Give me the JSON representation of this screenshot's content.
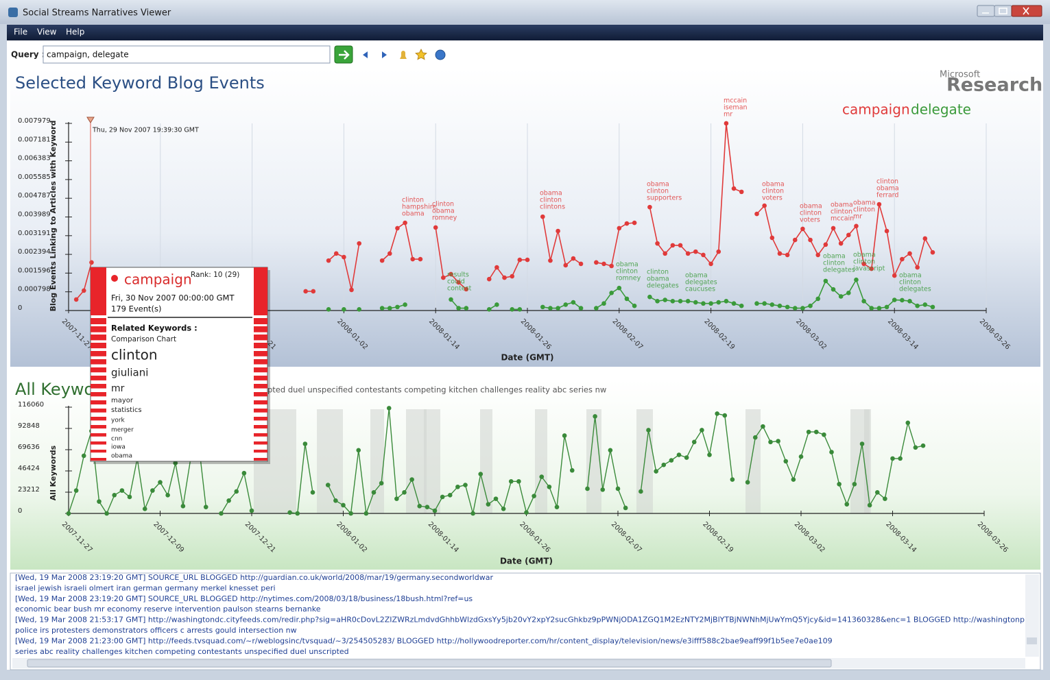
{
  "window": {
    "title": "Social Streams Narratives Viewer",
    "menu": [
      "File",
      "View",
      "Help"
    ]
  },
  "query": {
    "label": "Query :",
    "value": "campaign, delegate"
  },
  "logo": {
    "line1": "Microsoft",
    "line2": "Research"
  },
  "chart_data": [
    {
      "type": "line",
      "title": "Selected Keyword Blog Events",
      "xlabel": "Date (GMT)",
      "ylabel": "Blog Events Linking to Articles with Keyword",
      "cursor_label": "Thu, 29 Nov 2007 19:39:30 GMT",
      "grid": true,
      "x": [
        "2007-11-27",
        "2007-11-28",
        "2007-11-29",
        "2007-11-30",
        "2007-12-01",
        "2007-12-02",
        "2007-12-03",
        "2007-12-04",
        "2007-12-05",
        "2007-12-06",
        "2007-12-07",
        "2007-12-08",
        "2007-12-09",
        "2007-12-10",
        "2007-12-11",
        "2007-12-12",
        "2007-12-13",
        "2007-12-14",
        "2007-12-15",
        "2007-12-16",
        "2007-12-17",
        "2007-12-18",
        "2007-12-19",
        "2007-12-20",
        "2007-12-21",
        "2007-12-22",
        "2007-12-23",
        "2007-12-24",
        "2007-12-25",
        "2007-12-26",
        "2007-12-27",
        "2007-12-28",
        "2007-12-29",
        "2007-12-30",
        "2007-12-31",
        "2008-01-01",
        "2008-01-02",
        "2008-01-03",
        "2008-01-04",
        "2008-01-05",
        "2008-01-06",
        "2008-01-07",
        "2008-01-08",
        "2008-01-09",
        "2008-01-10",
        "2008-01-11",
        "2008-01-12",
        "2008-01-13",
        "2008-01-14",
        "2008-01-15",
        "2008-01-16",
        "2008-01-17",
        "2008-01-18",
        "2008-01-19",
        "2008-01-20",
        "2008-01-21",
        "2008-01-22",
        "2008-01-23",
        "2008-01-24",
        "2008-01-25",
        "2008-01-26",
        "2008-01-27",
        "2008-01-28",
        "2008-01-29",
        "2008-01-30",
        "2008-01-31",
        "2008-02-01",
        "2008-02-02",
        "2008-02-03",
        "2008-02-04",
        "2008-02-05",
        "2008-02-06",
        "2008-02-07",
        "2008-02-08",
        "2008-02-09",
        "2008-02-10",
        "2008-02-11",
        "2008-02-12",
        "2008-02-13",
        "2008-02-14",
        "2008-02-15",
        "2008-02-16",
        "2008-02-17",
        "2008-02-18",
        "2008-02-19",
        "2008-02-20",
        "2008-02-21",
        "2008-02-22",
        "2008-02-23",
        "2008-02-24",
        "2008-02-25",
        "2008-02-26",
        "2008-02-27",
        "2008-02-28",
        "2008-02-29",
        "2008-03-01",
        "2008-03-02",
        "2008-03-03",
        "2008-03-04",
        "2008-03-05",
        "2008-03-06",
        "2008-03-07",
        "2008-03-08",
        "2008-03-09",
        "2008-03-10",
        "2008-03-11",
        "2008-03-12",
        "2008-03-13",
        "2008-03-14",
        "2008-03-15",
        "2008-03-16",
        "2008-03-17",
        "2008-03-18",
        "2008-03-19",
        "2008-03-20"
      ],
      "xlim": [
        "2007-11-27",
        "2008-03-26"
      ],
      "xticks": [
        "2007-11-27",
        "2007-12-09",
        "2007-12-21",
        "2008-01-02",
        "2008-01-14",
        "2008-01-26",
        "2008-02-07",
        "2008-02-19",
        "2008-03-02",
        "2008-03-14",
        "2008-03-26"
      ],
      "ylim": [
        0,
        0.007979
      ],
      "yticks": [
        0,
        0.000798,
        0.001596,
        0.002394,
        0.003191,
        0.003989,
        0.004787,
        0.005585,
        0.006383,
        0.007181,
        0.007979
      ],
      "series": [
        {
          "name": "campaign",
          "color": "#e03a3a",
          "values": [
            null,
            0.00047,
            0.00085,
            0.00205,
            null,
            null,
            null,
            null,
            null,
            null,
            null,
            null,
            null,
            null,
            null,
            null,
            null,
            null,
            null,
            null,
            null,
            null,
            null,
            null,
            null,
            null,
            null,
            null,
            null,
            null,
            null,
            0.00082,
            0.00082,
            null,
            0.00213,
            0.00243,
            0.00228,
            0.00088,
            0.00286,
            null,
            null,
            0.00213,
            0.00243,
            0.00351,
            0.00374,
            0.00219,
            0.00219,
            null,
            0.00354,
            0.0014,
            0.00155,
            0.0012,
            0.00091,
            null,
            null,
            0.00134,
            0.00184,
            0.0014,
            0.00146,
            0.00216,
            0.00216,
            null,
            0.004,
            0.00213,
            0.00339,
            0.00193,
            0.00222,
            0.00199,
            null,
            0.00205,
            0.00199,
            0.0019,
            0.00351,
            0.00371,
            0.00374,
            null,
            0.00441,
            0.00286,
            0.00243,
            0.00278,
            0.00278,
            0.00243,
            0.00251,
            0.00237,
            0.00199,
            0.00251,
            0.00798,
            0.0052,
            0.00506,
            null,
            0.00412,
            0.00447,
            0.0031,
            0.00243,
            0.00237,
            0.00301,
            0.00348,
            0.00301,
            0.00237,
            0.00281,
            0.00351,
            0.00286,
            0.00322,
            0.0036,
            0.00199,
            0.00178,
            0.00453,
            0.00339,
            0.00149,
            0.00219,
            0.00243,
            0.00184,
            0.00307,
            0.00248,
            null
          ],
          "annotations": [
            [
              "clinton",
              "hampshire",
              "obama"
            ],
            [
              "clinton",
              "obama",
              "romney"
            ],
            [
              "obama",
              "clinton",
              "clintons"
            ],
            [
              "obama",
              "clinton",
              "supporters"
            ],
            [
              "mccain",
              "iseman",
              "mr"
            ],
            [
              "obama",
              "clinton",
              "voters"
            ],
            [
              "obama",
              "clinton",
              "voters"
            ],
            [
              "obama",
              "clinton",
              "mccain"
            ],
            [
              "obama",
              "clinton",
              "mr"
            ],
            [
              "clinton",
              "obama",
              "ferrard"
            ]
          ]
        },
        {
          "name": "delegate",
          "color": "#3a9a3a",
          "values": [
            null,
            null,
            null,
            null,
            null,
            null,
            null,
            null,
            null,
            null,
            null,
            null,
            null,
            null,
            null,
            null,
            null,
            null,
            null,
            null,
            null,
            null,
            null,
            null,
            null,
            null,
            null,
            null,
            null,
            null,
            null,
            null,
            null,
            null,
            5e-05,
            null,
            5e-05,
            null,
            5e-05,
            null,
            null,
            0.0001,
            0.0001,
            0.00015,
            0.00025,
            null,
            null,
            null,
            null,
            null,
            0.00047,
            0.0001,
            0.0001,
            null,
            null,
            5e-05,
            0.00025,
            null,
            5e-05,
            5e-05,
            null,
            null,
            0.00015,
            0.0001,
            0.0001,
            0.00025,
            0.00035,
            0.0001,
            null,
            0.0001,
            0.0003,
            0.00075,
            0.00096,
            0.0005,
            0.0002,
            null,
            0.00058,
            0.0004,
            0.00045,
            0.0004,
            0.0004,
            0.0004,
            0.00035,
            0.0003,
            0.0003,
            0.00035,
            0.0004,
            0.0003,
            0.0002,
            null,
            0.0003,
            0.0003,
            0.00025,
            0.0002,
            0.00015,
            0.0001,
            0.0001,
            0.0002,
            0.0005,
            0.00126,
            0.0009,
            0.0006,
            0.00075,
            0.00131,
            0.0004,
            0.0001,
            0.0001,
            0.00015,
            0.00045,
            0.00044,
            0.0004,
            0.0002,
            0.00025,
            0.00015,
            null
          ],
          "annotations": [
            [
              "results",
              "could",
              "contest"
            ],
            [
              "obama",
              "clinton",
              "romney"
            ],
            [
              "clinton",
              "obama",
              "delegates"
            ],
            [
              "obama",
              "delegates",
              "caucuses"
            ],
            [
              "obama",
              "clinton",
              "delegates"
            ],
            [
              "obama",
              "clinton",
              "javascript"
            ],
            [
              "obama",
              "clinton",
              "delegates"
            ]
          ]
        }
      ]
    },
    {
      "type": "line",
      "title": "All Keywords",
      "subtitle": "pted duel unspecified contestants competing kitchen challenges reality abc series nw",
      "xlabel": "Date (GMT)",
      "ylabel": "All Keywords",
      "grid": false,
      "x": [
        "2007-11-27",
        "2007-11-28",
        "2007-11-29",
        "2007-11-30",
        "2007-12-01",
        "2007-12-02",
        "2007-12-03",
        "2007-12-04",
        "2007-12-05",
        "2007-12-06",
        "2007-12-07",
        "2007-12-08",
        "2007-12-09",
        "2007-12-10",
        "2007-12-11",
        "2007-12-12",
        "2007-12-13",
        "2007-12-14",
        "2007-12-15",
        "2007-12-16",
        "2007-12-17",
        "2007-12-18",
        "2007-12-19",
        "2007-12-20",
        "2007-12-21",
        "2007-12-22",
        "2007-12-23",
        "2007-12-24",
        "2007-12-25",
        "2007-12-26",
        "2007-12-27",
        "2007-12-28",
        "2007-12-29",
        "2007-12-30",
        "2007-12-31",
        "2008-01-01",
        "2008-01-02",
        "2008-01-03",
        "2008-01-04",
        "2008-01-05",
        "2008-01-06",
        "2008-01-07",
        "2008-01-08",
        "2008-01-09",
        "2008-01-10",
        "2008-01-11",
        "2008-01-12",
        "2008-01-13",
        "2008-01-14",
        "2008-01-15",
        "2008-01-16",
        "2008-01-17",
        "2008-01-18",
        "2008-01-19",
        "2008-01-20",
        "2008-01-21",
        "2008-01-22",
        "2008-01-23",
        "2008-01-24",
        "2008-01-25",
        "2008-01-26",
        "2008-01-27",
        "2008-01-28",
        "2008-01-29",
        "2008-01-30",
        "2008-01-31",
        "2008-02-01",
        "2008-02-02",
        "2008-02-03",
        "2008-02-04",
        "2008-02-05",
        "2008-02-06",
        "2008-02-07",
        "2008-02-08",
        "2008-02-09",
        "2008-02-10",
        "2008-02-11",
        "2008-02-12",
        "2008-02-13",
        "2008-02-14",
        "2008-02-15",
        "2008-02-16",
        "2008-02-17",
        "2008-02-18",
        "2008-02-19",
        "2008-02-20",
        "2008-02-21",
        "2008-02-22",
        "2008-02-23",
        "2008-02-24",
        "2008-02-25",
        "2008-02-26",
        "2008-02-27",
        "2008-02-28",
        "2008-02-29",
        "2008-03-01",
        "2008-03-02",
        "2008-03-03",
        "2008-03-04",
        "2008-03-05",
        "2008-03-06",
        "2008-03-07",
        "2008-03-08",
        "2008-03-09",
        "2008-03-10",
        "2008-03-11",
        "2008-03-12",
        "2008-03-13",
        "2008-03-14",
        "2008-03-15",
        "2008-03-16",
        "2008-03-17",
        "2008-03-18",
        "2008-03-19",
        "2008-03-20"
      ],
      "xlim": [
        "2007-11-27",
        "2008-03-26"
      ],
      "xticks": [
        "2007-11-27",
        "2007-12-09",
        "2007-12-21",
        "2008-01-02",
        "2008-01-14",
        "2008-01-26",
        "2008-02-07",
        "2008-02-19",
        "2008-03-02",
        "2008-03-14",
        "2008-03-26"
      ],
      "ylim": [
        0,
        116060
      ],
      "yticks": [
        0,
        23212,
        46424,
        69636,
        92848,
        116060
      ],
      "series": [
        {
          "color": "#3a8a3a",
          "values": [
            0,
            25000,
            63000,
            90000,
            13000,
            0,
            20000,
            25000,
            18000,
            60000,
            5000,
            25000,
            34000,
            20000,
            55000,
            8000,
            60000,
            80000,
            7000,
            null,
            0,
            14000,
            24000,
            44000,
            3000,
            null,
            null,
            null,
            null,
            1000,
            0,
            76000,
            23000,
            null,
            31000,
            14000,
            9000,
            0,
            69000,
            0,
            23000,
            33000,
            115000,
            16000,
            23000,
            37000,
            8000,
            7000,
            3000,
            18000,
            20000,
            29000,
            31000,
            0,
            43000,
            10000,
            16000,
            5000,
            35000,
            35000,
            1000,
            19000,
            40000,
            29000,
            7000,
            85000,
            47000,
            null,
            27000,
            106000,
            26000,
            69000,
            27000,
            6000,
            null,
            24000,
            91000,
            46000,
            53000,
            58000,
            64000,
            61000,
            78000,
            91000,
            64000,
            109000,
            107000,
            37000,
            null,
            34000,
            83000,
            95000,
            78000,
            79000,
            57000,
            37000,
            62000,
            89000,
            89000,
            86000,
            67000,
            32000,
            10000,
            32000,
            76000,
            9000,
            23000,
            16000,
            60000,
            60000,
            99000,
            72000,
            74000,
            null,
            null
          ]
        }
      ]
    }
  ],
  "popup": {
    "keyword": "campaign",
    "rank": "Rank: 10 (29)",
    "date": "Fri, 30 Nov 2007 00:00:00 GMT",
    "events": "179 Event(s)",
    "related": "Related Keywords :",
    "link": "Comparison Chart",
    "keywords": [
      "clinton",
      "giuliani",
      "mr",
      "mayor",
      "statistics",
      "york",
      "merger",
      "cnn",
      "iowa",
      "obama"
    ]
  },
  "log": [
    "[Wed, 19 Mar 2008 23:19:20 GMT] SOURCE_URL BLOGGED http://guardian.co.uk/world/2008/mar/19/germany.secondworldwar",
    "israel jewish israeli olmert iran german germany merkel knesset peri",
    "[Wed, 19 Mar 2008 23:19:20 GMT] SOURCE_URL BLOGGED http://nytimes.com/2008/03/18/business/18bush.html?ref=us",
    "economic bear bush mr economy reserve intervention paulson stearns bernanke",
    "[Wed, 19 Mar 2008 21:53:17 GMT] http://washingtondc.cityfeeds.com/redir.php?sig=aHR0cDovL2ZIZWRzLmdvdGhhbWlzdGxsYy5jb20vY2xpY2sucGhkbz9pPWNjODA1ZGQ1M2EzNTY2MjBlYTBjNWNhMjUwYmQ5Yjcy&id=141360328&enc=1 BLOGGED http://washingtonpost.com/wp-dyn/cor",
    "police irs protesters demonstrators officers c arrests gould intersection nw",
    "[Wed, 19 Mar 2008 21:23:00 GMT] http://feeds.tvsquad.com/~r/weblogsinc/tvsquad/~3/254505283/ BLOGGED http://hollywoodreporter.com/hr/content_display/television/news/e3ifff588c2bae9eaff99f1b5ee7e0ae109",
    "series abc reality challenges kitchen competing contestants unspecified duel unscripted"
  ]
}
